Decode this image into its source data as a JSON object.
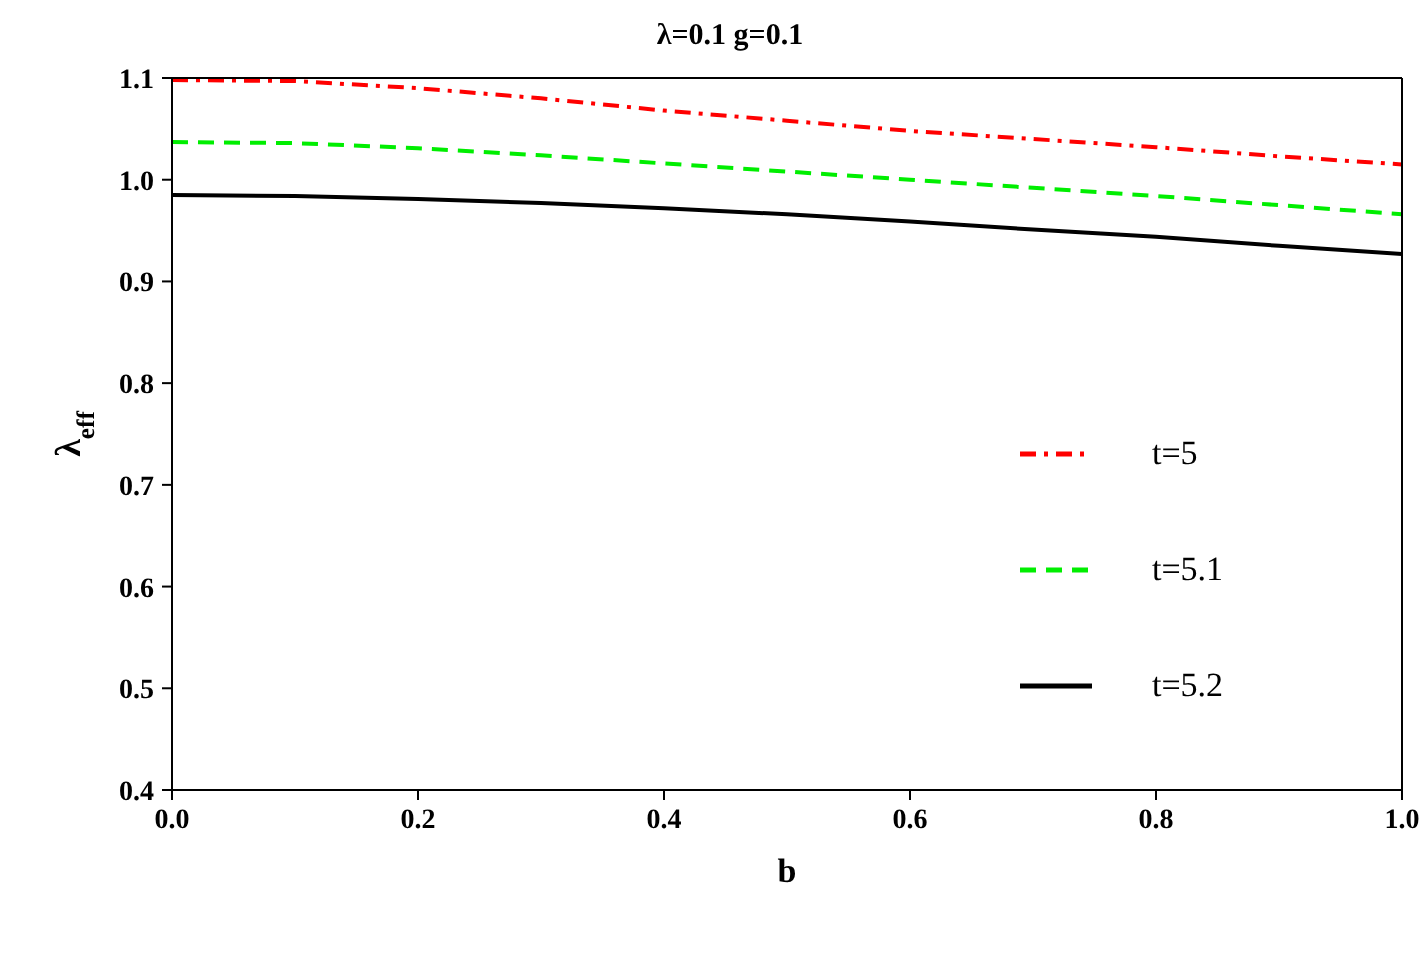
{
  "chart_data": {
    "type": "line",
    "title": "λ=0.1 g=0.1",
    "xlabel": "b",
    "ylabel": "λ$_{eff}$",
    "x": [
      0,
      0.1,
      0.2,
      0.3,
      0.4,
      0.5,
      0.6,
      0.7,
      0.8,
      0.9,
      1.0
    ],
    "series": [
      {
        "name": "t=5",
        "color": "#ff0000",
        "line_style": "dashdot",
        "values": [
          1.098,
          1.097,
          1.09,
          1.08,
          1.068,
          1.058,
          1.048,
          1.04,
          1.032,
          1.023,
          1.015
        ]
      },
      {
        "name": "t=5.1",
        "color": "#00ee00",
        "line_style": "dashed",
        "values": [
          1.037,
          1.036,
          1.031,
          1.024,
          1.016,
          1.008,
          1.0,
          0.992,
          0.984,
          0.975,
          0.966
        ]
      },
      {
        "name": "t=5.2",
        "color": "#000000",
        "line_style": "solid",
        "values": [
          0.985,
          0.984,
          0.981,
          0.977,
          0.972,
          0.966,
          0.959,
          0.951,
          0.944,
          0.935,
          0.927
        ]
      }
    ],
    "xlim": [
      0,
      1.0
    ],
    "xticks": [
      {
        "value": 0,
        "label": "0.0"
      },
      0.2,
      0.4,
      0.6,
      0.8,
      {
        "value": 1.0,
        "label": "1.0"
      }
    ],
    "ylim": [
      0.4,
      1.1
    ],
    "yticks": [
      0.4,
      0.5,
      0.6,
      0.7,
      0.8,
      0.9,
      {
        "value": 1.0,
        "label": "1.0"
      },
      1.1
    ],
    "grid": false,
    "legend": "right",
    "marker": "none"
  }
}
